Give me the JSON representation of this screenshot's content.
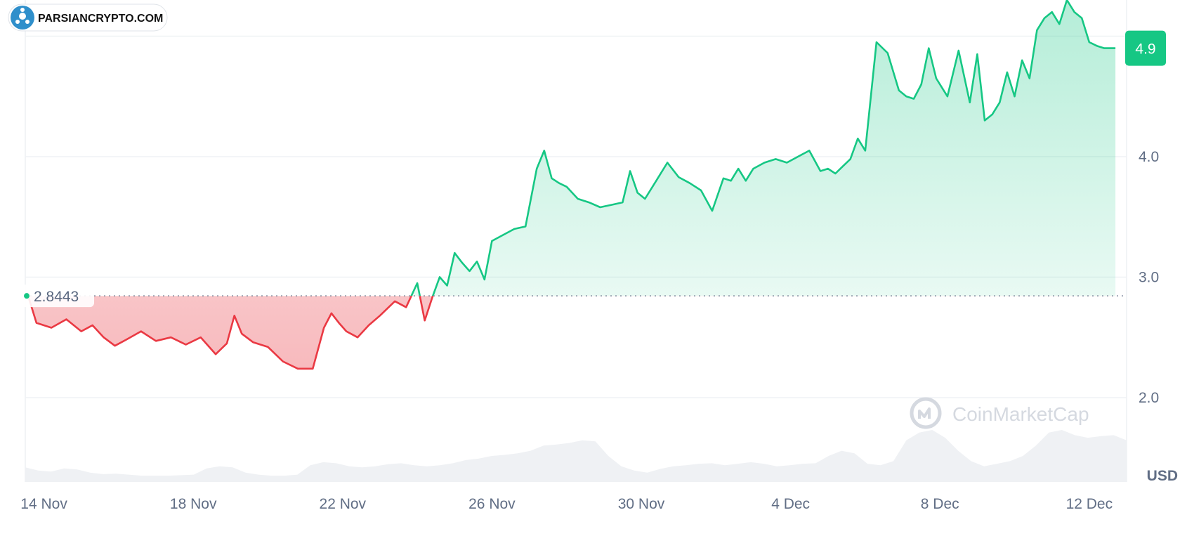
{
  "logo": {
    "text": "PARSIANCRYPTO.COM"
  },
  "watermark": {
    "text": "CoinMarketCap"
  },
  "colors": {
    "up": "#16c784",
    "down": "#ea3943",
    "grid": "#eff2f5",
    "text": "#616e85"
  },
  "chart_data": {
    "type": "area",
    "currency_label": "USD",
    "reference_price": {
      "value": 2.8443,
      "label": "2.8443"
    },
    "current_price": {
      "value": 4.9,
      "label": "4.9"
    },
    "ylim": [
      1.3,
      5.3
    ],
    "y_ticks": [
      {
        "value": 2.0,
        "label": "2.0"
      },
      {
        "value": 3.0,
        "label": "3.0"
      },
      {
        "value": 4.0,
        "label": "4.0"
      }
    ],
    "grid_values": [
      2.0,
      3.0,
      4.0,
      5.0
    ],
    "x_range": [
      13.5,
      43.0
    ],
    "x_ticks": [
      {
        "day": 14,
        "label": "14 Nov"
      },
      {
        "day": 18,
        "label": "18 Nov"
      },
      {
        "day": 22,
        "label": "22 Nov"
      },
      {
        "day": 26,
        "label": "26 Nov"
      },
      {
        "day": 30,
        "label": "30 Nov"
      },
      {
        "day": 34,
        "label": "4 Dec"
      },
      {
        "day": 38,
        "label": "8 Dec"
      },
      {
        "day": 42,
        "label": "12 Dec"
      }
    ],
    "series": [
      {
        "day": [
          13.55,
          13.8,
          14.2,
          14.6,
          15.0,
          15.3,
          15.6,
          15.9,
          16.2,
          16.6,
          17.0,
          17.4,
          17.8,
          18.2,
          18.6,
          18.9,
          19.1,
          19.3,
          19.6,
          20.0,
          20.4,
          20.8,
          21.2,
          21.5,
          21.7,
          21.9,
          22.1,
          22.4,
          22.7,
          23.0,
          23.4,
          23.7,
          24.0,
          24.2,
          24.4,
          24.6,
          24.8,
          25.0,
          25.2,
          25.4,
          25.6,
          25.8,
          26.0,
          26.3,
          26.6,
          26.9,
          27.2,
          27.4,
          27.6,
          27.8,
          28.0,
          28.3,
          28.6,
          28.9,
          29.2,
          29.5,
          29.7,
          29.9,
          30.1,
          30.4,
          30.7,
          31.0,
          31.3,
          31.6,
          31.9,
          32.2,
          32.4,
          32.6,
          32.8,
          33.0,
          33.3,
          33.6,
          33.9,
          34.2,
          34.5,
          34.8,
          35.0,
          35.2,
          35.4,
          35.6,
          35.8,
          36.0,
          36.3,
          36.6,
          36.9,
          37.1,
          37.3,
          37.5,
          37.7,
          37.9,
          38.2,
          38.5,
          38.8,
          39.0,
          39.2,
          39.4,
          39.6,
          39.8,
          40.0,
          40.2,
          40.4,
          40.6,
          40.8,
          41.0,
          41.2,
          41.4,
          41.6,
          41.8,
          42.0,
          42.2,
          42.4,
          42.6,
          42.7
        ],
        "price": [
          2.87,
          2.62,
          2.58,
          2.65,
          2.55,
          2.6,
          2.5,
          2.43,
          2.48,
          2.55,
          2.47,
          2.5,
          2.44,
          2.5,
          2.36,
          2.45,
          2.68,
          2.53,
          2.46,
          2.42,
          2.3,
          2.24,
          2.24,
          2.58,
          2.7,
          2.62,
          2.55,
          2.5,
          2.6,
          2.68,
          2.8,
          2.75,
          2.95,
          2.64,
          2.83,
          3.0,
          2.93,
          3.2,
          3.12,
          3.05,
          3.13,
          2.98,
          3.3,
          3.35,
          3.4,
          3.42,
          3.9,
          4.05,
          3.82,
          3.78,
          3.75,
          3.65,
          3.62,
          3.58,
          3.6,
          3.62,
          3.88,
          3.7,
          3.65,
          3.8,
          3.95,
          3.83,
          3.78,
          3.72,
          3.55,
          3.82,
          3.8,
          3.9,
          3.8,
          3.9,
          3.95,
          3.98,
          3.95,
          4.0,
          4.05,
          3.88,
          3.9,
          3.86,
          3.92,
          3.98,
          4.15,
          4.05,
          4.95,
          4.86,
          4.55,
          4.5,
          4.48,
          4.6,
          4.9,
          4.65,
          4.5,
          4.88,
          4.45,
          4.85,
          4.3,
          4.35,
          4.45,
          4.7,
          4.5,
          4.8,
          4.65,
          5.05,
          5.15,
          5.2,
          5.1,
          5.3,
          5.2,
          5.15,
          4.95,
          4.92,
          4.9,
          4.9,
          4.9
        ]
      }
    ],
    "volume_relative": [
      0.28,
      0.22,
      0.2,
      0.26,
      0.24,
      0.18,
      0.15,
      0.16,
      0.14,
      0.12,
      0.12,
      0.12,
      0.13,
      0.14,
      0.26,
      0.3,
      0.28,
      0.18,
      0.14,
      0.12,
      0.12,
      0.14,
      0.32,
      0.38,
      0.36,
      0.3,
      0.28,
      0.3,
      0.34,
      0.36,
      0.32,
      0.3,
      0.32,
      0.36,
      0.42,
      0.45,
      0.5,
      0.52,
      0.55,
      0.6,
      0.7,
      0.72,
      0.75,
      0.8,
      0.78,
      0.5,
      0.3,
      0.22,
      0.18,
      0.25,
      0.3,
      0.32,
      0.35,
      0.36,
      0.32,
      0.35,
      0.38,
      0.35,
      0.3,
      0.32,
      0.35,
      0.36,
      0.5,
      0.6,
      0.55,
      0.35,
      0.32,
      0.4,
      0.8,
      0.95,
      1.0,
      0.85,
      0.6,
      0.4,
      0.3,
      0.35,
      0.4,
      0.5,
      0.7,
      0.95,
      1.0,
      0.9,
      0.85,
      0.88,
      0.9,
      0.8
    ]
  }
}
